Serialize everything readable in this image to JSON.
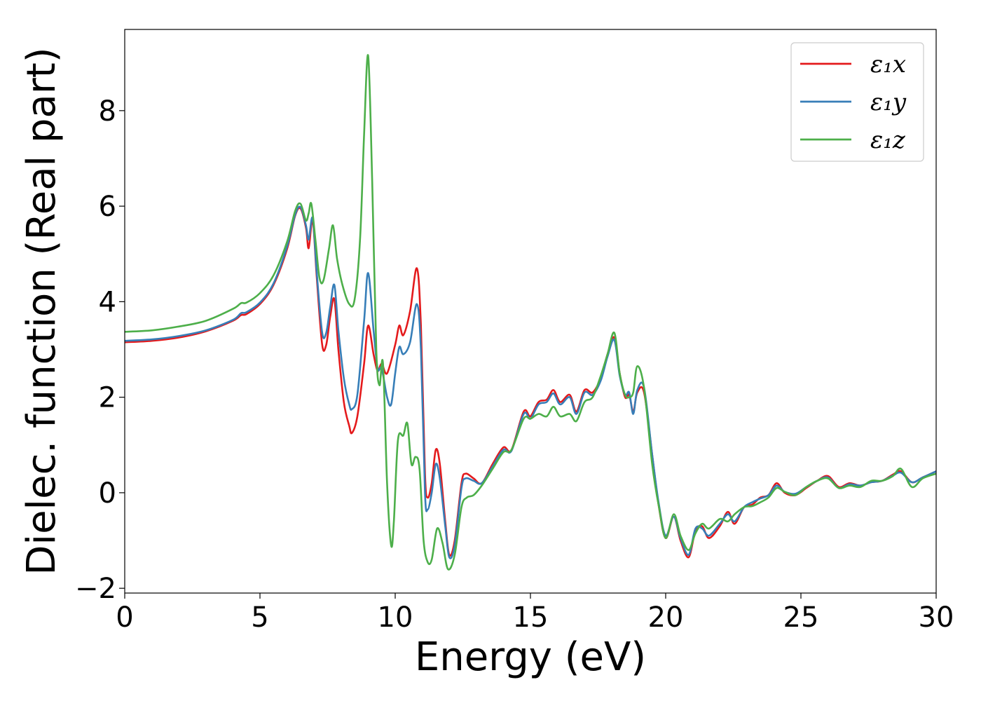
{
  "chart_data": {
    "type": "line",
    "title": "",
    "xlabel": "Energy (eV)",
    "ylabel": "Dielec. function (Real part)",
    "xlim": [
      0,
      30
    ],
    "ylim": [
      -2.1,
      9.7
    ],
    "xticks": [
      0,
      5,
      10,
      15,
      20,
      25,
      30
    ],
    "xtick_labels": [
      "0",
      "5",
      "10",
      "15",
      "20",
      "25",
      "30"
    ],
    "yticks": [
      -2,
      0,
      2,
      4,
      6,
      8
    ],
    "ytick_labels": [
      "−2",
      "0",
      "2",
      "4",
      "6",
      "8"
    ],
    "grid": false,
    "legend_position": "top-right",
    "series": [
      {
        "name": "ε₁x",
        "color": "#e41a1c",
        "points": [
          [
            0,
            3.15
          ],
          [
            1,
            3.18
          ],
          [
            2,
            3.25
          ],
          [
            3,
            3.38
          ],
          [
            4,
            3.6
          ],
          [
            4.3,
            3.72
          ],
          [
            4.5,
            3.74
          ],
          [
            5,
            3.95
          ],
          [
            5.5,
            4.35
          ],
          [
            6,
            5.1
          ],
          [
            6.3,
            5.8
          ],
          [
            6.5,
            5.95
          ],
          [
            6.7,
            5.55
          ],
          [
            6.8,
            5.12
          ],
          [
            6.95,
            5.7
          ],
          [
            7.1,
            4.5
          ],
          [
            7.3,
            3.1
          ],
          [
            7.45,
            3.1
          ],
          [
            7.6,
            3.7
          ],
          [
            7.75,
            4.05
          ],
          [
            7.9,
            3.0
          ],
          [
            8.1,
            1.9
          ],
          [
            8.3,
            1.4
          ],
          [
            8.4,
            1.25
          ],
          [
            8.6,
            1.6
          ],
          [
            8.85,
            2.7
          ],
          [
            9.0,
            3.5
          ],
          [
            9.2,
            2.9
          ],
          [
            9.35,
            2.55
          ],
          [
            9.5,
            2.7
          ],
          [
            9.7,
            2.5
          ],
          [
            10.0,
            3.1
          ],
          [
            10.15,
            3.5
          ],
          [
            10.3,
            3.3
          ],
          [
            10.55,
            3.8
          ],
          [
            10.8,
            4.7
          ],
          [
            10.95,
            3.5
          ],
          [
            11.1,
            0.4
          ],
          [
            11.2,
            -0.1
          ],
          [
            11.35,
            0.2
          ],
          [
            11.5,
            0.9
          ],
          [
            11.65,
            0.6
          ],
          [
            11.85,
            -0.6
          ],
          [
            12.0,
            -1.3
          ],
          [
            12.2,
            -1.0
          ],
          [
            12.45,
            0.2
          ],
          [
            12.6,
            0.4
          ],
          [
            12.9,
            0.3
          ],
          [
            13.2,
            0.2
          ],
          [
            13.6,
            0.6
          ],
          [
            14.0,
            0.95
          ],
          [
            14.3,
            0.9
          ],
          [
            14.75,
            1.7
          ],
          [
            15.0,
            1.6
          ],
          [
            15.3,
            1.9
          ],
          [
            15.6,
            1.95
          ],
          [
            15.85,
            2.15
          ],
          [
            16.1,
            1.9
          ],
          [
            16.45,
            2.05
          ],
          [
            16.7,
            1.7
          ],
          [
            17.0,
            2.15
          ],
          [
            17.3,
            2.1
          ],
          [
            17.6,
            2.4
          ],
          [
            17.85,
            2.9
          ],
          [
            18.1,
            3.25
          ],
          [
            18.3,
            2.5
          ],
          [
            18.5,
            2.0
          ],
          [
            18.65,
            2.05
          ],
          [
            18.8,
            1.7
          ],
          [
            18.95,
            2.1
          ],
          [
            19.2,
            2.1
          ],
          [
            19.5,
            0.8
          ],
          [
            19.75,
            -0.3
          ],
          [
            20.0,
            -0.95
          ],
          [
            20.3,
            -0.5
          ],
          [
            20.55,
            -1.0
          ],
          [
            20.85,
            -1.35
          ],
          [
            21.1,
            -0.8
          ],
          [
            21.35,
            -0.7
          ],
          [
            21.6,
            -0.95
          ],
          [
            22.0,
            -0.7
          ],
          [
            22.3,
            -0.4
          ],
          [
            22.55,
            -0.65
          ],
          [
            22.9,
            -0.3
          ],
          [
            23.2,
            -0.25
          ],
          [
            23.5,
            -0.1
          ],
          [
            23.8,
            -0.05
          ],
          [
            24.1,
            0.2
          ],
          [
            24.4,
            0.0
          ],
          [
            24.8,
            -0.05
          ],
          [
            25.2,
            0.1
          ],
          [
            25.6,
            0.25
          ],
          [
            26.0,
            0.35
          ],
          [
            26.4,
            0.12
          ],
          [
            26.8,
            0.2
          ],
          [
            27.2,
            0.15
          ],
          [
            27.6,
            0.22
          ],
          [
            28.0,
            0.25
          ],
          [
            28.4,
            0.38
          ],
          [
            28.7,
            0.45
          ],
          [
            29.1,
            0.22
          ],
          [
            29.5,
            0.32
          ],
          [
            30.0,
            0.45
          ]
        ]
      },
      {
        "name": "ε₁y",
        "color": "#377eb8",
        "points": [
          [
            0,
            3.18
          ],
          [
            1,
            3.21
          ],
          [
            2,
            3.28
          ],
          [
            3,
            3.4
          ],
          [
            4,
            3.62
          ],
          [
            4.3,
            3.76
          ],
          [
            4.5,
            3.78
          ],
          [
            5,
            3.98
          ],
          [
            5.5,
            4.38
          ],
          [
            6,
            5.15
          ],
          [
            6.3,
            5.82
          ],
          [
            6.5,
            5.98
          ],
          [
            6.7,
            5.6
          ],
          [
            6.8,
            5.3
          ],
          [
            6.95,
            5.75
          ],
          [
            7.1,
            4.6
          ],
          [
            7.3,
            3.35
          ],
          [
            7.45,
            3.35
          ],
          [
            7.6,
            3.9
          ],
          [
            7.75,
            4.35
          ],
          [
            7.9,
            3.4
          ],
          [
            8.1,
            2.4
          ],
          [
            8.3,
            1.85
          ],
          [
            8.4,
            1.75
          ],
          [
            8.6,
            2.05
          ],
          [
            8.85,
            3.6
          ],
          [
            9.0,
            4.6
          ],
          [
            9.2,
            3.4
          ],
          [
            9.35,
            2.6
          ],
          [
            9.5,
            2.6
          ],
          [
            9.7,
            2.0
          ],
          [
            9.85,
            1.85
          ],
          [
            10.0,
            2.5
          ],
          [
            10.15,
            3.05
          ],
          [
            10.3,
            2.9
          ],
          [
            10.55,
            3.15
          ],
          [
            10.8,
            3.95
          ],
          [
            10.95,
            3.0
          ],
          [
            11.1,
            0.0
          ],
          [
            11.2,
            -0.35
          ],
          [
            11.35,
            0.0
          ],
          [
            11.5,
            0.6
          ],
          [
            11.65,
            0.3
          ],
          [
            11.85,
            -0.7
          ],
          [
            12.0,
            -1.35
          ],
          [
            12.2,
            -1.1
          ],
          [
            12.45,
            0.1
          ],
          [
            12.6,
            0.3
          ],
          [
            12.9,
            0.25
          ],
          [
            13.2,
            0.2
          ],
          [
            13.6,
            0.55
          ],
          [
            14.0,
            0.9
          ],
          [
            14.3,
            0.88
          ],
          [
            14.75,
            1.65
          ],
          [
            15.0,
            1.55
          ],
          [
            15.3,
            1.85
          ],
          [
            15.6,
            1.9
          ],
          [
            15.85,
            2.08
          ],
          [
            16.1,
            1.85
          ],
          [
            16.45,
            2.0
          ],
          [
            16.7,
            1.65
          ],
          [
            17.0,
            2.1
          ],
          [
            17.3,
            2.05
          ],
          [
            17.6,
            2.35
          ],
          [
            17.85,
            2.85
          ],
          [
            18.1,
            3.2
          ],
          [
            18.3,
            2.45
          ],
          [
            18.5,
            2.05
          ],
          [
            18.65,
            2.1
          ],
          [
            18.8,
            1.65
          ],
          [
            18.95,
            2.15
          ],
          [
            19.2,
            2.2
          ],
          [
            19.5,
            0.8
          ],
          [
            19.75,
            -0.25
          ],
          [
            20.0,
            -0.9
          ],
          [
            20.3,
            -0.5
          ],
          [
            20.55,
            -0.95
          ],
          [
            20.85,
            -1.3
          ],
          [
            21.1,
            -0.75
          ],
          [
            21.35,
            -0.75
          ],
          [
            21.6,
            -0.9
          ],
          [
            22.0,
            -0.65
          ],
          [
            22.3,
            -0.45
          ],
          [
            22.55,
            -0.6
          ],
          [
            22.9,
            -0.3
          ],
          [
            23.2,
            -0.2
          ],
          [
            23.5,
            -0.12
          ],
          [
            23.8,
            -0.05
          ],
          [
            24.1,
            0.15
          ],
          [
            24.4,
            0.02
          ],
          [
            24.8,
            -0.02
          ],
          [
            25.2,
            0.12
          ],
          [
            25.6,
            0.25
          ],
          [
            26.0,
            0.32
          ],
          [
            26.4,
            0.1
          ],
          [
            26.8,
            0.18
          ],
          [
            27.2,
            0.15
          ],
          [
            27.6,
            0.22
          ],
          [
            28.0,
            0.25
          ],
          [
            28.4,
            0.36
          ],
          [
            28.7,
            0.42
          ],
          [
            29.1,
            0.22
          ],
          [
            29.5,
            0.32
          ],
          [
            30.0,
            0.45
          ]
        ]
      },
      {
        "name": "ε₁z",
        "color": "#4daf4a",
        "points": [
          [
            0,
            3.37
          ],
          [
            1,
            3.4
          ],
          [
            2,
            3.48
          ],
          [
            3,
            3.6
          ],
          [
            4,
            3.85
          ],
          [
            4.3,
            3.97
          ],
          [
            4.5,
            3.98
          ],
          [
            5,
            4.18
          ],
          [
            5.5,
            4.55
          ],
          [
            6,
            5.25
          ],
          [
            6.3,
            5.9
          ],
          [
            6.5,
            6.05
          ],
          [
            6.7,
            5.7
          ],
          [
            6.8,
            5.85
          ],
          [
            6.9,
            6.05
          ],
          [
            7.05,
            5.3
          ],
          [
            7.2,
            4.5
          ],
          [
            7.35,
            4.45
          ],
          [
            7.55,
            5.1
          ],
          [
            7.7,
            5.6
          ],
          [
            7.85,
            4.9
          ],
          [
            8.05,
            4.35
          ],
          [
            8.3,
            3.95
          ],
          [
            8.5,
            4.05
          ],
          [
            8.7,
            5.3
          ],
          [
            8.85,
            7.5
          ],
          [
            9.0,
            9.15
          ],
          [
            9.15,
            6.5
          ],
          [
            9.3,
            3.0
          ],
          [
            9.42,
            2.25
          ],
          [
            9.55,
            2.7
          ],
          [
            9.7,
            0.2
          ],
          [
            9.85,
            -1.1
          ],
          [
            9.95,
            -0.6
          ],
          [
            10.1,
            1.1
          ],
          [
            10.3,
            1.2
          ],
          [
            10.45,
            1.45
          ],
          [
            10.6,
            0.6
          ],
          [
            10.75,
            0.75
          ],
          [
            10.9,
            0.5
          ],
          [
            11.05,
            -1.0
          ],
          [
            11.2,
            -1.45
          ],
          [
            11.35,
            -1.4
          ],
          [
            11.55,
            -0.75
          ],
          [
            11.75,
            -1.05
          ],
          [
            11.95,
            -1.6
          ],
          [
            12.2,
            -1.3
          ],
          [
            12.45,
            -0.3
          ],
          [
            12.65,
            -0.1
          ],
          [
            12.9,
            -0.05
          ],
          [
            13.2,
            0.15
          ],
          [
            13.6,
            0.5
          ],
          [
            14.0,
            0.85
          ],
          [
            14.3,
            0.9
          ],
          [
            14.75,
            1.55
          ],
          [
            15.0,
            1.55
          ],
          [
            15.3,
            1.65
          ],
          [
            15.6,
            1.6
          ],
          [
            15.85,
            1.8
          ],
          [
            16.1,
            1.6
          ],
          [
            16.45,
            1.65
          ],
          [
            16.7,
            1.5
          ],
          [
            17.0,
            1.9
          ],
          [
            17.3,
            2.0
          ],
          [
            17.6,
            2.45
          ],
          [
            17.85,
            2.9
          ],
          [
            18.1,
            3.35
          ],
          [
            18.3,
            2.5
          ],
          [
            18.5,
            2.05
          ],
          [
            18.65,
            2.0
          ],
          [
            18.8,
            2.1
          ],
          [
            18.95,
            2.65
          ],
          [
            19.2,
            2.2
          ],
          [
            19.5,
            0.6
          ],
          [
            19.75,
            -0.3
          ],
          [
            20.0,
            -0.95
          ],
          [
            20.3,
            -0.45
          ],
          [
            20.55,
            -0.9
          ],
          [
            20.85,
            -1.2
          ],
          [
            21.1,
            -0.85
          ],
          [
            21.35,
            -0.65
          ],
          [
            21.6,
            -0.75
          ],
          [
            22.0,
            -0.55
          ],
          [
            22.3,
            -0.6
          ],
          [
            22.55,
            -0.45
          ],
          [
            22.9,
            -0.3
          ],
          [
            23.2,
            -0.28
          ],
          [
            23.5,
            -0.2
          ],
          [
            23.8,
            -0.1
          ],
          [
            24.1,
            0.1
          ],
          [
            24.4,
            0.02
          ],
          [
            24.8,
            -0.05
          ],
          [
            25.2,
            0.12
          ],
          [
            25.6,
            0.25
          ],
          [
            26.0,
            0.3
          ],
          [
            26.4,
            0.1
          ],
          [
            26.8,
            0.15
          ],
          [
            27.2,
            0.12
          ],
          [
            27.6,
            0.25
          ],
          [
            28.0,
            0.25
          ],
          [
            28.4,
            0.35
          ],
          [
            28.7,
            0.5
          ],
          [
            29.1,
            0.12
          ],
          [
            29.5,
            0.3
          ],
          [
            30.0,
            0.4
          ]
        ]
      }
    ]
  }
}
